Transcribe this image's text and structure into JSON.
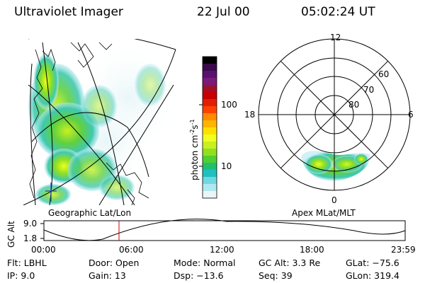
{
  "header": {
    "title": "Ultraviolet Imager",
    "date": "22 Jul 00",
    "time": "05:02:24 UT"
  },
  "left_panel": {
    "label": "Geographic Lat/Lon"
  },
  "colorbar": {
    "unit_label": "photon cm",
    "unit_exp1": "-2",
    "unit_s": "s",
    "unit_exp2": "-1",
    "ticks": [
      "100",
      "10"
    ],
    "colors": [
      "#000000",
      "#3a0a4a",
      "#5a1070",
      "#7a1a7a",
      "#a0102a",
      "#c80000",
      "#e02000",
      "#ff4000",
      "#ff8a00",
      "#ffb400",
      "#ffe000",
      "#f0ff20",
      "#c8f020",
      "#90e020",
      "#50d030",
      "#20c070",
      "#20c0c0",
      "#70d8e0",
      "#b0e8f0",
      "#e8f6f8"
    ]
  },
  "polar_plot": {
    "label": "Apex MLat/MLT",
    "mlt_labels": {
      "top": "12",
      "right": "6",
      "bottom": "0",
      "left": "18"
    },
    "lat_labels": [
      "60",
      "70",
      "80"
    ]
  },
  "altitude_plot": {
    "ylabel": "GC Alt",
    "y_ticks": [
      "9.0",
      "1.8"
    ],
    "x_ticks": [
      "00:00",
      "06:00",
      "12:00",
      "18:00",
      "23:59"
    ],
    "marker_time": "05:02"
  },
  "info": {
    "flt": "Flt: LBHL",
    "ip": "IP:  9.0",
    "door": "Door: Open",
    "gain": "Gain: 13",
    "mode": "Mode: Normal",
    "dsp": "Dsp:  −13.6",
    "gc_alt": "GC Alt: 3.3 Re",
    "seq": "Seq: 39",
    "glat": "GLat: −75.6",
    "glon": "GLon: 319.4"
  }
}
